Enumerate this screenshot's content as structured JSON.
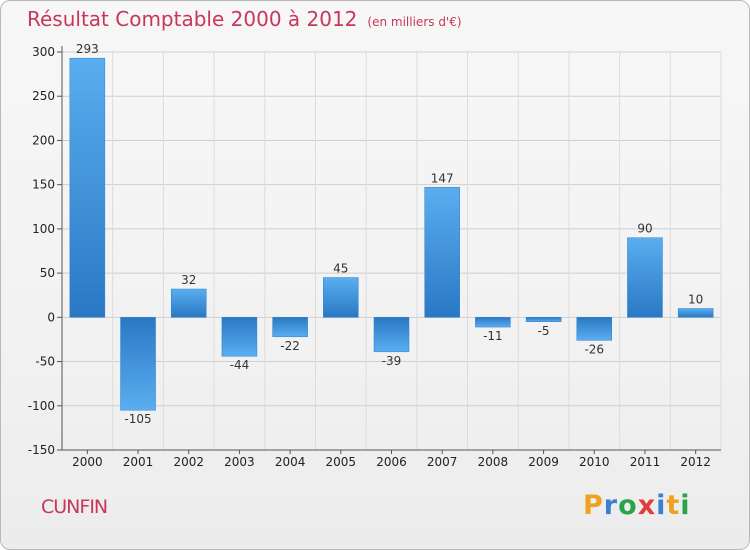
{
  "header": {
    "title": "Résultat Comptable 2000 à 2012",
    "subtitle": "(en milliers d'€)"
  },
  "commune": "CUNFIN",
  "logo": {
    "letters": [
      "P",
      "r",
      "o",
      "x",
      "i",
      "t",
      "i"
    ],
    "colors": [
      "#f0a020",
      "#3a7fd0",
      "#2aa34a",
      "#e23b3b",
      "#3a7fd0",
      "#f0a020",
      "#2aa34a"
    ]
  },
  "chart_data": {
    "type": "bar",
    "categories": [
      "2000",
      "2001",
      "2002",
      "2003",
      "2004",
      "2005",
      "2006",
      "2007",
      "2008",
      "2009",
      "2010",
      "2011",
      "2012"
    ],
    "values": [
      293,
      -105,
      32,
      -44,
      -22,
      45,
      -39,
      147,
      -11,
      -5,
      -26,
      90,
      10
    ],
    "data_labels": [
      "293",
      "-105",
      "32",
      "-44",
      "-22",
      "45",
      "-39",
      "147",
      "-11",
      "-5",
      "-26",
      "90",
      "10"
    ],
    "yticks": [
      "300",
      "250",
      "200",
      "150",
      "100",
      "50",
      "0",
      "-50",
      "-100",
      "-150"
    ],
    "ylim": [
      -150,
      300
    ],
    "grid": true,
    "bar_color": "#3b8fd6"
  }
}
